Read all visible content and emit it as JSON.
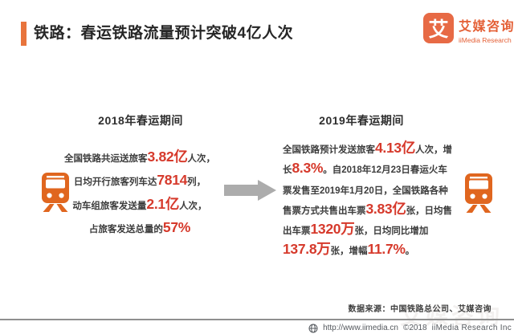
{
  "header": {
    "title": "铁路：春运铁路流量预计突破4亿人次"
  },
  "logo": {
    "glyph": "艾",
    "name": "艾媒咨询",
    "sub": "iiMedia Research"
  },
  "comparison": {
    "left": {
      "period": "2018年春运期间",
      "lines": [
        [
          {
            "t": "全国铁路共运送旅客"
          },
          {
            "t": "3.82亿",
            "red": true
          },
          {
            "t": "人次，"
          }
        ],
        [
          {
            "t": "日均开行旅客列车达"
          },
          {
            "t": "7814",
            "red": true
          },
          {
            "t": "列，"
          }
        ],
        [
          {
            "t": "动车组旅客发送量"
          },
          {
            "t": "2.1亿",
            "red": true
          },
          {
            "t": "人次，"
          }
        ],
        [
          {
            "t": "占旅客发送总量的"
          },
          {
            "t": "57%",
            "red": true
          }
        ]
      ]
    },
    "right": {
      "period": "2019年春运期间",
      "lines": [
        [
          {
            "t": "全国铁路预计发送旅客"
          },
          {
            "t": "4.13亿",
            "red": true
          },
          {
            "t": "人次，增"
          }
        ],
        [
          {
            "t": "长"
          },
          {
            "t": "8.3%",
            "red": true
          },
          {
            "t": "。自2018年12月23日春运火车"
          }
        ],
        [
          {
            "t": "票发售至2019年1月20日，全国铁路各种"
          }
        ],
        [
          {
            "t": "售票方式共售出车票"
          },
          {
            "t": "3.83亿",
            "red": true
          },
          {
            "t": "张，日均售"
          }
        ],
        [
          {
            "t": "出车票"
          },
          {
            "t": "1320万",
            "red": true
          },
          {
            "t": "张，日均同比增加"
          }
        ],
        [
          {
            "t": "137.8万",
            "red": true
          },
          {
            "t": "张，增幅"
          },
          {
            "t": "11.7%",
            "red": true
          },
          {
            "t": "。"
          }
        ]
      ]
    }
  },
  "icons": {
    "left_column": "train-icon",
    "right_column": "train-icon",
    "transition": "right-arrow-icon",
    "footer": "globe-icon",
    "logo": "imedia-logo-icon"
  },
  "source": {
    "label": "数据来源：中国铁路总公司、艾媒咨询"
  },
  "watermark": {
    "text": "艾媒咨询"
  },
  "footer": {
    "url": "http://www.iimedia.cn",
    "copyright": "©2018",
    "company": "iiMedia Research Inc"
  },
  "colors": {
    "accent_orange": "#E0661F",
    "title_bar_orange": "#E8743C",
    "logo_orange": "#E76A45",
    "logo_text_orange": "#E45F35",
    "number_red": "#D63A2C",
    "arrow_gray": "#ACACAC"
  }
}
